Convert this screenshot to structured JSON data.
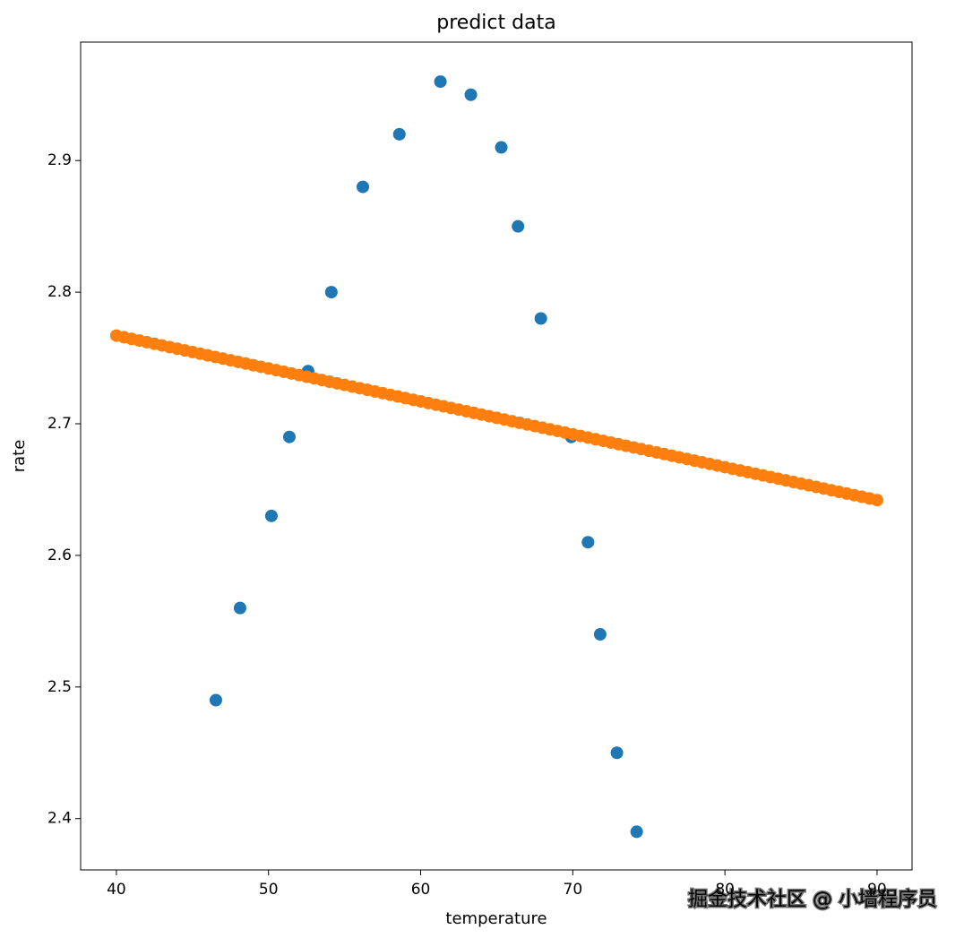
{
  "chart_data": {
    "type": "scatter",
    "title": "predict data",
    "x_label": "temperature",
    "y_label": "rate",
    "annotation": "掘金技术社区 @ 小墙程序员",
    "xlim": [
      37.65,
      92.3
    ],
    "ylim": [
      2.361,
      2.99
    ],
    "xticks": [
      40,
      50,
      60,
      70,
      80,
      90
    ],
    "yticks": [
      2.4,
      2.5,
      2.6,
      2.7,
      2.8,
      2.9
    ],
    "series": [
      {
        "color": "#1f77b4",
        "x": [
          46.54,
          48.13,
          50.19,
          51.37,
          52.6,
          54.13,
          56.2,
          58.6,
          61.3,
          63.3,
          65.3,
          66.4,
          67.9,
          69.9,
          71.0,
          71.8,
          72.9,
          74.2
        ],
        "values": [
          2.49,
          2.56,
          2.63,
          2.69,
          2.74,
          2.8,
          2.88,
          2.92,
          2.96,
          2.95,
          2.91,
          2.85,
          2.78,
          2.69,
          2.61,
          2.54,
          2.45,
          2.39
        ]
      },
      {
        "color": "#ff7f0e",
        "x": [
          40,
          40.5,
          41,
          41.5,
          42,
          42.5,
          43,
          43.5,
          44,
          44.5,
          45,
          45.5,
          46,
          46.5,
          47,
          47.5,
          48,
          48.5,
          49,
          49.5,
          50,
          50.5,
          51,
          51.5,
          52,
          52.5,
          53,
          53.5,
          54,
          54.5,
          55,
          55.5,
          56,
          56.5,
          57,
          57.5,
          58,
          58.5,
          59,
          59.5,
          60,
          60.5,
          61,
          61.5,
          62,
          62.5,
          63,
          63.5,
          64,
          64.5,
          65,
          65.5,
          66,
          66.5,
          67,
          67.5,
          68,
          68.5,
          69,
          69.5,
          70,
          70.5,
          71,
          71.5,
          72,
          72.5,
          73,
          73.5,
          74,
          74.5,
          75,
          75.5,
          76,
          76.5,
          77,
          77.5,
          78,
          78.5,
          79,
          79.5,
          80,
          80.5,
          81,
          81.5,
          82,
          82.5,
          83,
          83.5,
          84,
          84.5,
          85,
          85.5,
          86,
          86.5,
          87,
          87.5,
          88,
          88.5,
          89,
          89.5,
          90
        ],
        "values": [
          2.767,
          2.76575,
          2.7645,
          2.76325,
          2.762,
          2.76075,
          2.7595,
          2.75825,
          2.757,
          2.75575,
          2.7545,
          2.75325,
          2.752,
          2.75075,
          2.7495,
          2.74825,
          2.747,
          2.74575,
          2.7445,
          2.74325,
          2.742,
          2.74075,
          2.7395,
          2.73825,
          2.737,
          2.73575,
          2.7345,
          2.73325,
          2.732,
          2.73075,
          2.7295,
          2.72825,
          2.727,
          2.72575,
          2.7245,
          2.72325,
          2.722,
          2.72075,
          2.7195,
          2.71825,
          2.717,
          2.71575,
          2.7145,
          2.71325,
          2.712,
          2.71075,
          2.7095,
          2.70825,
          2.707,
          2.70575,
          2.7045,
          2.70325,
          2.702,
          2.70075,
          2.6995,
          2.69825,
          2.697,
          2.69575,
          2.6945,
          2.69325,
          2.692,
          2.69075,
          2.6895,
          2.68825,
          2.687,
          2.68575,
          2.6845,
          2.68325,
          2.682,
          2.68075,
          2.6795,
          2.67825,
          2.677,
          2.67575,
          2.6745,
          2.67325,
          2.672,
          2.67075,
          2.6695,
          2.66825,
          2.667,
          2.66575,
          2.6645,
          2.66325,
          2.662,
          2.66075,
          2.6595,
          2.65825,
          2.657,
          2.65575,
          2.6545,
          2.65325,
          2.652,
          2.65075,
          2.6495,
          2.64825,
          2.647,
          2.64575,
          2.6445,
          2.64325,
          2.642
        ]
      }
    ]
  }
}
